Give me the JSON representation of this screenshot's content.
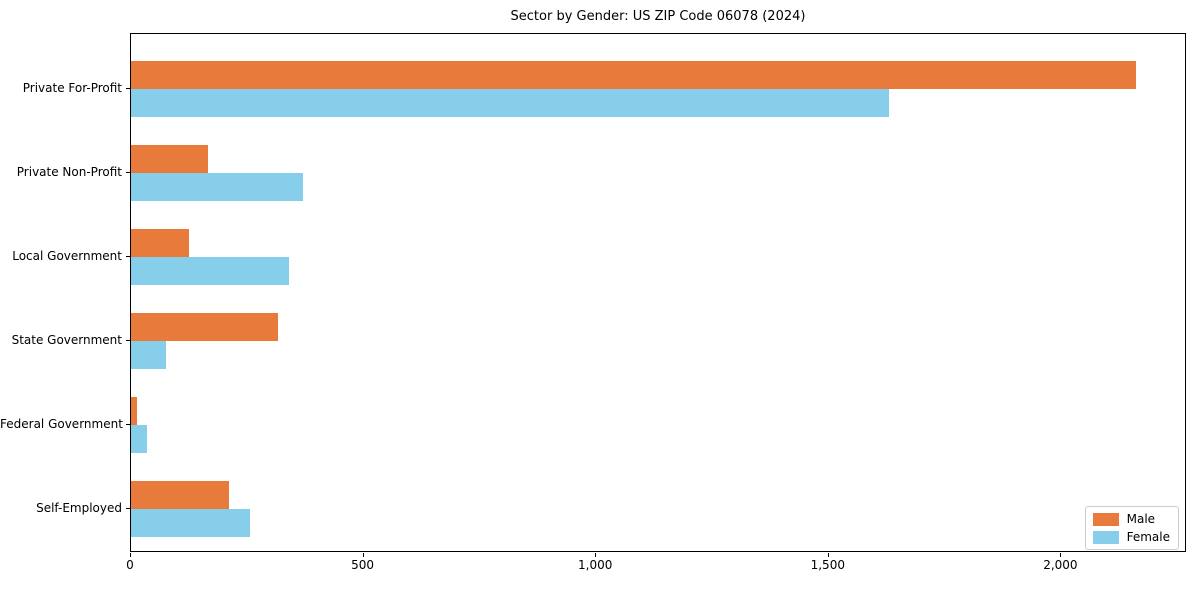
{
  "chart_data": {
    "type": "bar",
    "orientation": "horizontal",
    "title": "Sector by Gender: US ZIP Code 06078 (2024)",
    "categories": [
      "Private For-Profit",
      "Private Non-Profit",
      "Local Government",
      "State Government",
      "Federal Government",
      "Self-Employed"
    ],
    "series": [
      {
        "name": "Male",
        "color": "#E87A3C",
        "values": [
          2160,
          165,
          125,
          315,
          12,
          210
        ]
      },
      {
        "name": "Female",
        "color": "#87CEEB",
        "values": [
          1630,
          370,
          340,
          75,
          35,
          255
        ]
      }
    ],
    "xlabel": "",
    "ylabel": "",
    "xlim": [
      0,
      2270
    ],
    "xticks": [
      0,
      500,
      1000,
      1500,
      2000
    ],
    "xtick_labels": [
      "0",
      "500",
      "1,000",
      "1,500",
      "2,000"
    ],
    "legend": {
      "position": "lower right"
    },
    "grid": false,
    "background_color": "#ffffff",
    "spine_color": "#000000"
  }
}
